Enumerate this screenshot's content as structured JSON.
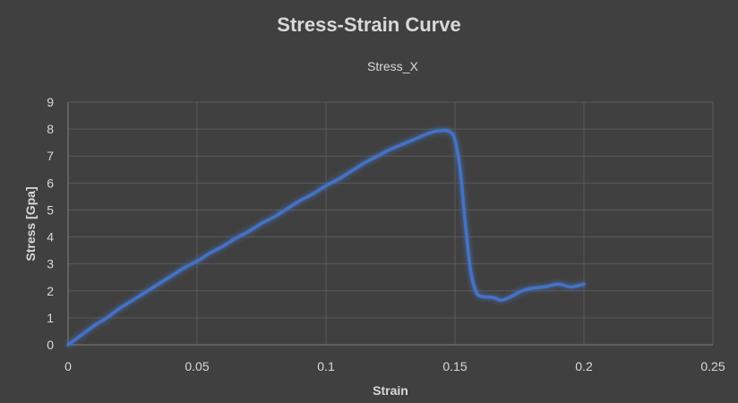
{
  "chart_data": {
    "type": "line",
    "title": "Stress-Strain Curve",
    "xlabel": "Strain",
    "ylabel": "Stress [Gpa]",
    "xlim": [
      0,
      0.25
    ],
    "ylim": [
      0,
      9
    ],
    "x_ticks": [
      "0",
      "0.05",
      "0.1",
      "0.15",
      "0.2",
      "0.25"
    ],
    "y_ticks": [
      "0",
      "1",
      "2",
      "3",
      "4",
      "5",
      "6",
      "7",
      "8",
      "9"
    ],
    "grid": true,
    "legend_position": "top",
    "series": [
      {
        "name": "Stress_X",
        "color": "#4472c4",
        "x": [
          0,
          0.005,
          0.01,
          0.015,
          0.02,
          0.025,
          0.03,
          0.035,
          0.04,
          0.045,
          0.05,
          0.055,
          0.06,
          0.065,
          0.07,
          0.075,
          0.08,
          0.085,
          0.09,
          0.095,
          0.1,
          0.105,
          0.11,
          0.115,
          0.12,
          0.125,
          0.13,
          0.135,
          0.14,
          0.145,
          0.148,
          0.15,
          0.152,
          0.154,
          0.156,
          0.158,
          0.16,
          0.165,
          0.168,
          0.172,
          0.176,
          0.18,
          0.185,
          0.19,
          0.195,
          0.2
        ],
        "y": [
          0,
          0.35,
          0.7,
          1.0,
          1.35,
          1.65,
          1.95,
          2.25,
          2.55,
          2.85,
          3.1,
          3.4,
          3.65,
          3.95,
          4.2,
          4.5,
          4.75,
          5.05,
          5.35,
          5.6,
          5.9,
          6.15,
          6.45,
          6.75,
          7.0,
          7.25,
          7.45,
          7.65,
          7.85,
          7.95,
          7.9,
          7.6,
          6.5,
          4.5,
          2.8,
          2.0,
          1.8,
          1.75,
          1.65,
          1.8,
          2.0,
          2.1,
          2.15,
          2.25,
          2.15,
          2.25
        ]
      }
    ]
  }
}
